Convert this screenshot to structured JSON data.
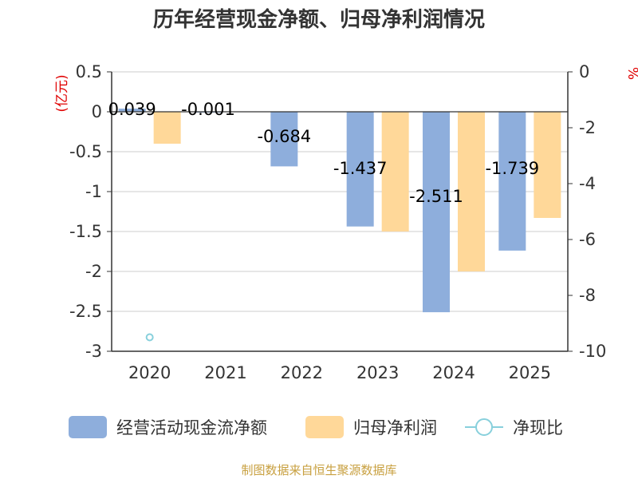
{
  "chart_data": {
    "type": "bar",
    "title": "历年经营现金净额、归母净利润情况",
    "categories": [
      "2020",
      "2021",
      "2022",
      "2023",
      "2024",
      "2025"
    ],
    "left_axis": {
      "unit": "(亿元)",
      "ylim": [
        -3,
        0.5
      ],
      "ticks": [
        "0.5",
        "0",
        "-0.5",
        "-1",
        "-1.5",
        "-2",
        "-2.5",
        "-3"
      ],
      "tick_values": [
        0.5,
        0,
        -0.5,
        -1,
        -1.5,
        -2,
        -2.5,
        -3
      ]
    },
    "right_axis": {
      "unit": "%",
      "ylim": [
        -10,
        0
      ],
      "ticks": [
        "0",
        "-2",
        "-4",
        "-6",
        "-8",
        "-10"
      ],
      "tick_values": [
        0,
        -2,
        -4,
        -6,
        -8,
        -10
      ]
    },
    "series": [
      {
        "name": "经营活动现金流净额",
        "color": "#8eaedc",
        "axis": "left",
        "values": [
          0.039,
          -0.001,
          -0.684,
          -1.437,
          -2.511,
          -1.739
        ],
        "labels": [
          "0.039",
          "-0.001",
          "-0.684",
          "-1.437",
          "-2.511",
          "-1.739"
        ]
      },
      {
        "name": "归母净利润",
        "color": "#ffd899",
        "axis": "left",
        "values": [
          -0.4,
          null,
          null,
          -1.5,
          -2.0,
          -1.33
        ]
      },
      {
        "name": "净现比",
        "color": "#88d0dc",
        "axis": "right",
        "type": "scatter",
        "values": [
          -9.5,
          null,
          null,
          null,
          null,
          null
        ]
      }
    ],
    "grid": true,
    "legend_position": "bottom"
  },
  "colors": {
    "title": "#333333",
    "unit": "#e00000",
    "source": "#c8a040",
    "grid": "#cccccc"
  },
  "source_text": "制图数据来自恒生聚源数据库"
}
